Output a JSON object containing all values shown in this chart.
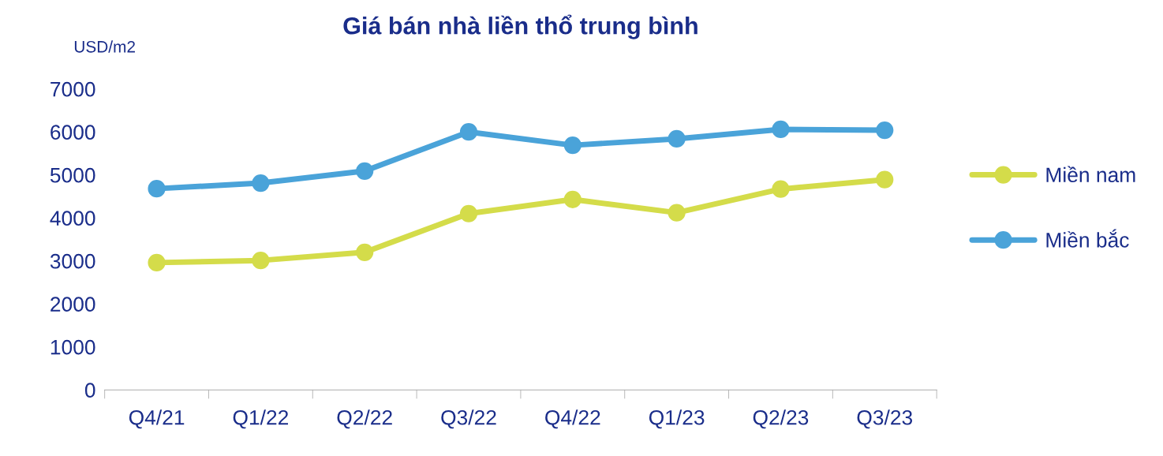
{
  "chart_data": {
    "type": "line",
    "title": "Giá bán nhà liền thổ trung bình",
    "ylabel": "USD/m2",
    "categories": [
      "Q4/21",
      "Q1/22",
      "Q2/22",
      "Q3/22",
      "Q4/22",
      "Q1/23",
      "Q2/23",
      "Q3/23"
    ],
    "series": [
      {
        "name": "Miền nam",
        "color": "#d4dc4a",
        "values": [
          2960,
          3010,
          3200,
          4100,
          4430,
          4120,
          4670,
          4890
        ]
      },
      {
        "name": "Miền bắc",
        "color": "#4aa3d9",
        "values": [
          4680,
          4810,
          5090,
          6000,
          5690,
          5840,
          6060,
          6040
        ]
      }
    ],
    "ylim": [
      0,
      7000
    ],
    "yticks": [
      0,
      1000,
      2000,
      3000,
      4000,
      5000,
      6000,
      7000
    ],
    "grid": false,
    "legend": "right",
    "marker": "circle",
    "line_style": "solid"
  }
}
